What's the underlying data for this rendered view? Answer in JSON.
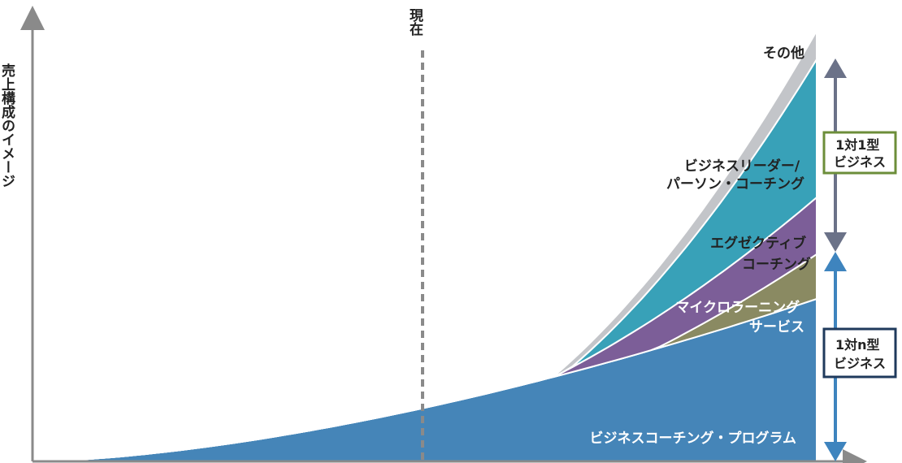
{
  "chart_data": {
    "type": "area",
    "stacked": true,
    "y_axis_label": "売上構成のイメージ",
    "now_marker_label": "現在",
    "series": [
      {
        "name": "ビジネスコーチング・プログラム",
        "label_lines": [
          "ビジネスコーチング・プログラム"
        ],
        "color": "#4585b8",
        "label_color": "white"
      },
      {
        "name": "マイクロラーニングサービス",
        "label_lines": [
          "マイクロラーニング",
          "サービス"
        ],
        "color": "#8a8a62",
        "label_color": "white"
      },
      {
        "name": "エグゼクティブコーチング",
        "label_lines": [
          "エグゼクティブ",
          "コーチング"
        ],
        "color": "#7c5e98",
        "label_color": "dark"
      },
      {
        "name": "ビジネスリーダー/パーソン・コーチング",
        "label_lines": [
          "ビジネスリーダー/",
          "パーソン・コーチング"
        ],
        "color": "#38a1b8",
        "label_color": "dark"
      },
      {
        "name": "その他",
        "label_lines": [
          "その他"
        ],
        "color": "#c3c5c9",
        "label_color": "dark"
      }
    ],
    "groups": [
      {
        "label_lines": [
          "1対1型",
          "ビジネス"
        ],
        "border_color": "#6c8e3a",
        "arrow_color": "#6b7288"
      },
      {
        "label_lines": [
          "1対n型",
          "ビジネス"
        ],
        "border_color": "#1f3a5c",
        "arrow_color": "#3e84be"
      }
    ],
    "axis_color": "#8a8a8a",
    "now_line_color": "#8a8a8a"
  }
}
